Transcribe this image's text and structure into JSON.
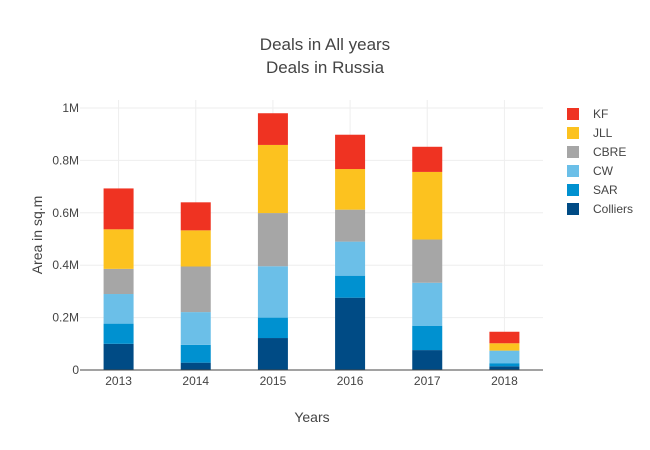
{
  "chart_data": {
    "type": "bar",
    "stacked": true,
    "title_lines": [
      "Deals in All years",
      "Deals in Russia"
    ],
    "xlabel": "Years",
    "ylabel": "Area in sq.m",
    "categories": [
      "2013",
      "2014",
      "2015",
      "2016",
      "2017",
      "2018"
    ],
    "ylim": [
      0,
      1000000
    ],
    "yticks": [
      0,
      200000,
      400000,
      600000,
      800000,
      1000000
    ],
    "ytick_labels": [
      "0",
      "0.2M",
      "0.4M",
      "0.6M",
      "0.8M",
      "1M"
    ],
    "grid": true,
    "legend_position": "right",
    "series": [
      {
        "name": "Colliers",
        "color": "#004b85",
        "values": [
          100000,
          28000,
          122000,
          276000,
          76000,
          14000
        ]
      },
      {
        "name": "SAR",
        "color": "#0091d0",
        "values": [
          77000,
          68000,
          78000,
          84000,
          93000,
          12000
        ]
      },
      {
        "name": "CW",
        "color": "#6bbfe8",
        "values": [
          113000,
          125000,
          196000,
          130000,
          164000,
          48000
        ]
      },
      {
        "name": "CBRE",
        "color": "#a6a6a6",
        "values": [
          96000,
          174000,
          203000,
          122000,
          165000,
          0
        ]
      },
      {
        "name": "JLL",
        "color": "#fcc21f",
        "values": [
          151000,
          138000,
          260000,
          155000,
          258000,
          28000
        ]
      },
      {
        "name": "KF",
        "color": "#ef3322",
        "values": [
          156000,
          107000,
          121000,
          131000,
          96000,
          44000
        ]
      }
    ],
    "legend_order": [
      "KF",
      "JLL",
      "CBRE",
      "CW",
      "SAR",
      "Colliers"
    ]
  }
}
